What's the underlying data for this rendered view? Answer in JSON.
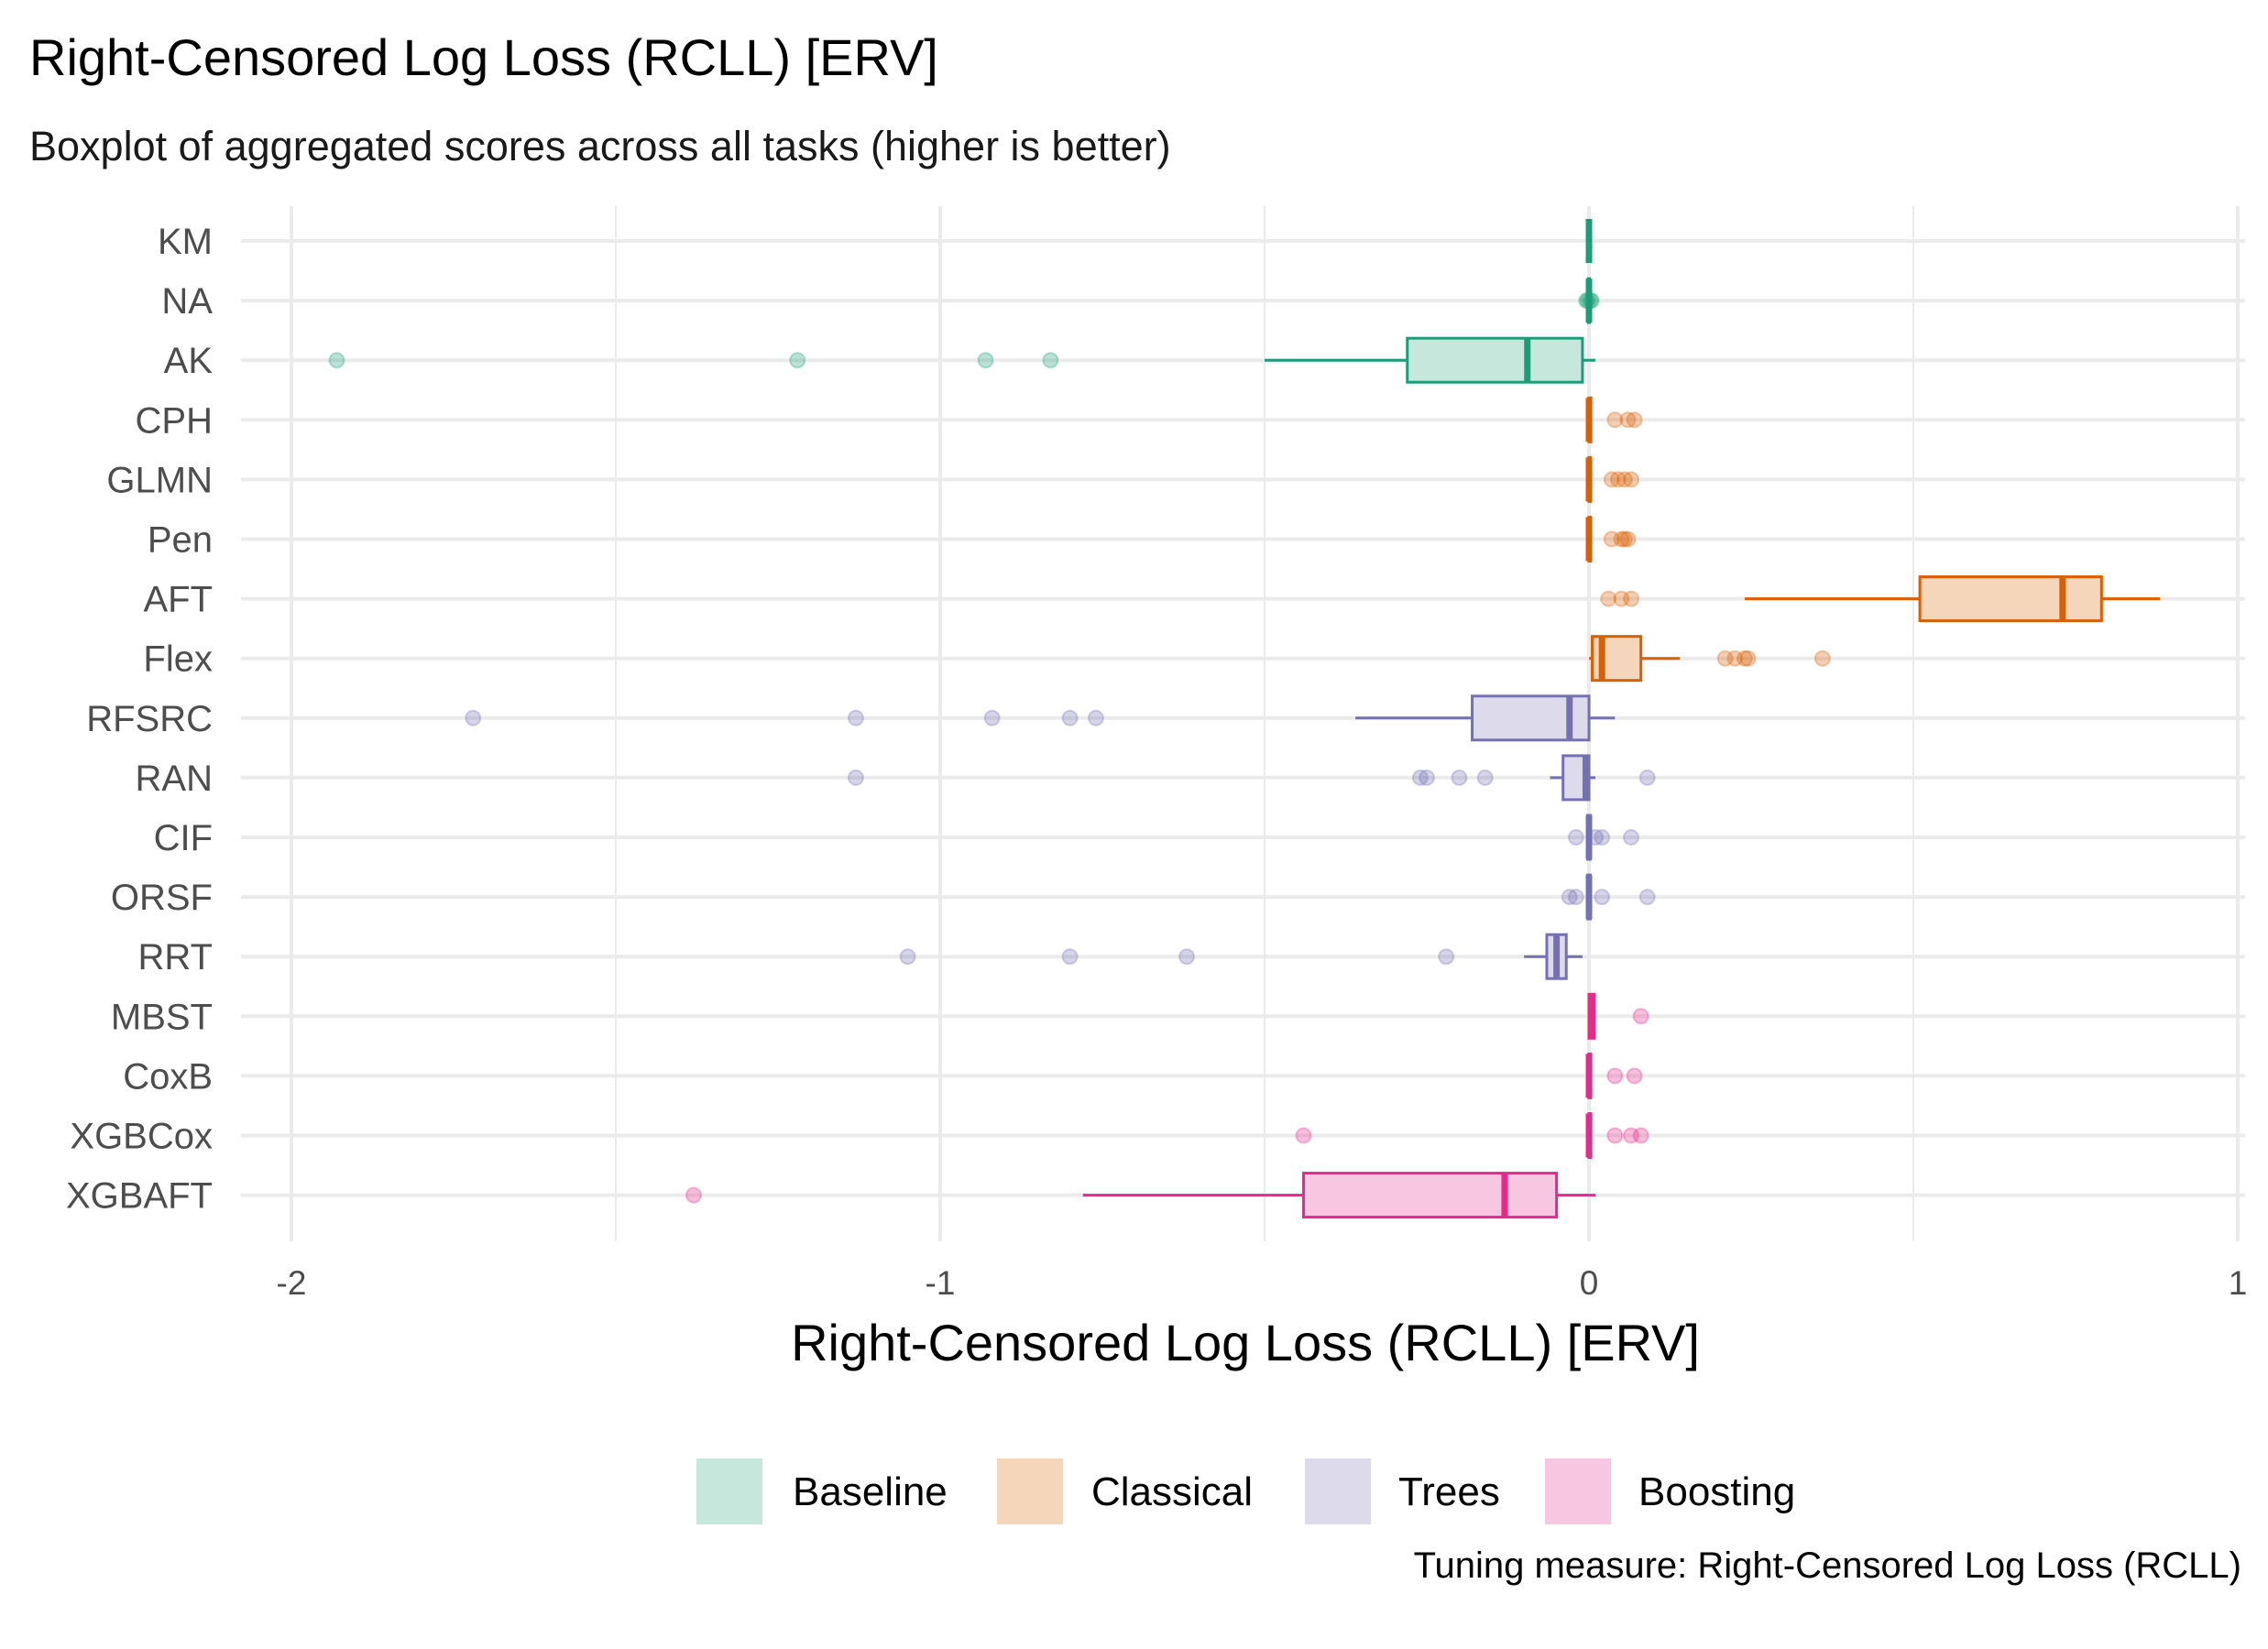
{
  "chart_data": {
    "type": "boxplot",
    "orientation": "horizontal",
    "title": "Right-Censored Log Loss (RCLL) [ERV]",
    "subtitle": "Boxplot of aggregated scores across all tasks (higher is better)",
    "xlabel": "Right-Censored Log Loss (RCLL) [ERV]",
    "ylabel": "",
    "caption": "Tuning measure: Right-Censored Log Loss (RCLL)",
    "xlim": [
      -2.1,
      1.0
    ],
    "xticks": [
      -2,
      -1,
      0,
      1
    ],
    "xtick_labels": [
      "-2",
      "-1",
      "0",
      "1"
    ],
    "legend": {
      "position": "bottom",
      "groups": [
        {
          "name": "Baseline",
          "fill": "#c6e8dc",
          "stroke": "#1b9e77"
        },
        {
          "name": "Classical",
          "fill": "#f6d6bb",
          "stroke": "#d95f02"
        },
        {
          "name": "Trees",
          "fill": "#dcdaeb",
          "stroke": "#7570b3"
        },
        {
          "name": "Boosting",
          "fill": "#f7c6e0",
          "stroke": "#e7298a"
        }
      ]
    },
    "learners": [
      {
        "name": "KM",
        "group": "Baseline",
        "box": {
          "whisker_low": 0.0,
          "q1": 0.0,
          "median": 0.0,
          "q3": 0.0,
          "whisker_high": 0.0
        },
        "outliers": []
      },
      {
        "name": "NA",
        "group": "Baseline",
        "box": {
          "whisker_low": -0.003,
          "q1": -0.001,
          "median": 0.0,
          "q3": 0.001,
          "whisker_high": 0.003
        },
        "outliers": [
          -0.004,
          -0.002,
          0.002,
          0.004
        ]
      },
      {
        "name": "AK",
        "group": "Baseline",
        "box": {
          "whisker_low": -0.5,
          "q1": -0.28,
          "median": -0.095,
          "q3": -0.01,
          "whisker_high": 0.01
        },
        "outliers": [
          -1.93,
          -1.22,
          -0.93,
          -0.83
        ]
      },
      {
        "name": "CPH",
        "group": "Classical",
        "box": {
          "whisker_low": 0.0,
          "q1": 0.0,
          "median": 0.0,
          "q3": 0.003,
          "whisker_high": 0.005
        },
        "outliers": [
          0.04,
          0.06,
          0.07
        ]
      },
      {
        "name": "GLMN",
        "group": "Classical",
        "box": {
          "whisker_low": 0.0,
          "q1": 0.0,
          "median": 0.0,
          "q3": 0.002,
          "whisker_high": 0.004
        },
        "outliers": [
          0.035,
          0.045,
          0.055,
          0.065
        ]
      },
      {
        "name": "Pen",
        "group": "Classical",
        "box": {
          "whisker_low": 0.0,
          "q1": 0.0,
          "median": 0.0,
          "q3": 0.002,
          "whisker_high": 0.004
        },
        "outliers": [
          0.035,
          0.05,
          0.055,
          0.06
        ]
      },
      {
        "name": "AFT",
        "group": "Classical",
        "box": {
          "whisker_low": 0.24,
          "q1": 0.51,
          "median": 0.73,
          "q3": 0.79,
          "whisker_high": 0.88
        },
        "outliers": [
          0.03,
          0.05,
          0.065
        ]
      },
      {
        "name": "Flex",
        "group": "Classical",
        "box": {
          "whisker_low": 0.0,
          "q1": 0.005,
          "median": 0.02,
          "q3": 0.08,
          "whisker_high": 0.14
        },
        "outliers": [
          0.21,
          0.225,
          0.24,
          0.245,
          0.36
        ]
      },
      {
        "name": "RFSRC",
        "group": "Trees",
        "box": {
          "whisker_low": -0.36,
          "q1": -0.18,
          "median": -0.03,
          "q3": 0.0,
          "whisker_high": 0.04
        },
        "outliers": [
          -1.72,
          -1.13,
          -0.92,
          -0.8,
          -0.76
        ]
      },
      {
        "name": "RAN",
        "group": "Trees",
        "box": {
          "whisker_low": -0.06,
          "q1": -0.04,
          "median": -0.005,
          "q3": 0.0,
          "whisker_high": 0.01
        },
        "outliers": [
          -1.13,
          -0.26,
          -0.25,
          -0.2,
          -0.16,
          0.09
        ]
      },
      {
        "name": "CIF",
        "group": "Trees",
        "box": {
          "whisker_low": -0.005,
          "q1": -0.002,
          "median": 0.0,
          "q3": 0.002,
          "whisker_high": 0.005
        },
        "outliers": [
          -0.02,
          0.01,
          0.02,
          0.065
        ]
      },
      {
        "name": "ORSF",
        "group": "Trees",
        "box": {
          "whisker_low": -0.005,
          "q1": -0.002,
          "median": 0.0,
          "q3": 0.002,
          "whisker_high": 0.005
        },
        "outliers": [
          -0.03,
          -0.02,
          0.02,
          0.09
        ]
      },
      {
        "name": "RRT",
        "group": "Trees",
        "box": {
          "whisker_low": -0.1,
          "q1": -0.065,
          "median": -0.05,
          "q3": -0.035,
          "whisker_high": -0.01
        },
        "outliers": [
          -1.05,
          -0.8,
          -0.62,
          -0.22
        ]
      },
      {
        "name": "MBST",
        "group": "Boosting",
        "box": {
          "whisker_low": 0.0,
          "q1": 0.0,
          "median": 0.005,
          "q3": 0.008,
          "whisker_high": 0.01
        },
        "outliers": [
          0.08
        ]
      },
      {
        "name": "CoxB",
        "group": "Boosting",
        "box": {
          "whisker_low": 0.0,
          "q1": 0.0,
          "median": 0.0,
          "q3": 0.002,
          "whisker_high": 0.004
        },
        "outliers": [
          0.04,
          0.07
        ]
      },
      {
        "name": "XGBCox",
        "group": "Boosting",
        "box": {
          "whisker_low": 0.0,
          "q1": 0.0,
          "median": 0.0,
          "q3": 0.002,
          "whisker_high": 0.004
        },
        "outliers": [
          -0.44,
          0.04,
          0.065,
          0.08
        ]
      },
      {
        "name": "XGBAFT",
        "group": "Boosting",
        "box": {
          "whisker_low": -0.78,
          "q1": -0.44,
          "median": -0.13,
          "q3": -0.05,
          "whisker_high": 0.01
        },
        "outliers": [
          -1.38
        ]
      }
    ]
  }
}
